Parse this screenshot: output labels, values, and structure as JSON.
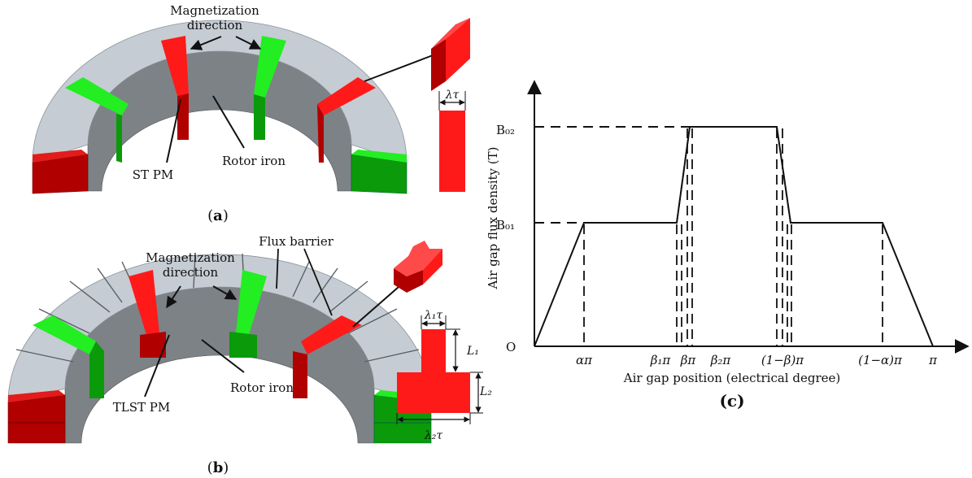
{
  "panel_a": {
    "magnetization_line1": "Magnetization",
    "magnetization_line2": "direction",
    "pm_label": "ST PM",
    "rotor_label": "Rotor iron",
    "width_label": "λτ",
    "caption_open": "(",
    "caption_letter": "a",
    "caption_close": ")"
  },
  "panel_b": {
    "magnetization_line1": "Magnetization",
    "magnetization_line2": "direction",
    "flux_barrier_label": "Flux barrier",
    "pm_label": "TLST PM",
    "rotor_label": "Rotor iron",
    "top_width_label": "λ₁τ",
    "bottom_width_label": "λ₂τ",
    "l1_label": "L₁",
    "l2_label": "L₂",
    "caption_open": "(",
    "caption_letter": "b",
    "caption_close": ")"
  },
  "panel_c": {
    "ylabel": "Air gap flux density (T)",
    "xlabel": "Air gap position (electrical degree)",
    "y_tick_b02": "B₀₂",
    "y_tick_b01": "B₀₁",
    "origin": "O",
    "x_ticks": [
      "απ",
      "β₁π",
      "βπ",
      "β₂π",
      "(1−β)π",
      "(1−α)π",
      "π"
    ],
    "caption": "(c)"
  },
  "colors": {
    "iron": "#c5ccd3",
    "iron_inner": "#7d8286",
    "magnet_red": "#ff1a1a",
    "magnet_red_dark": "#b00000",
    "magnet_green": "#22ee22",
    "magnet_green_dark": "#0a9a0a"
  }
}
